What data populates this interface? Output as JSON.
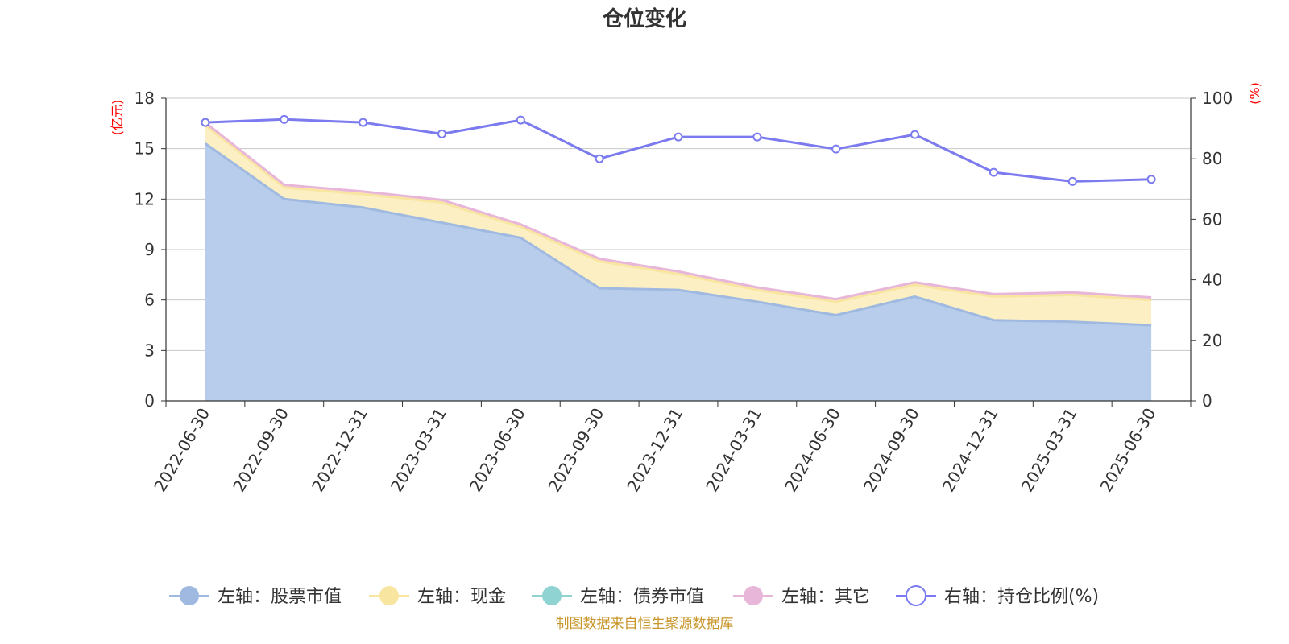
{
  "title": "仓位变化",
  "source": "制图数据来自恒生聚源数据库",
  "chart_data": {
    "type": "area",
    "title": "仓位变化",
    "x": [
      "2022-06-30",
      "2022-09-30",
      "2022-12-31",
      "2023-03-31",
      "2023-06-30",
      "2023-09-30",
      "2023-12-31",
      "2024-03-31",
      "2024-06-30",
      "2024-09-30",
      "2024-12-31",
      "2025-03-31",
      "2025-06-30"
    ],
    "left_axis": {
      "unit": "(亿元)",
      "ylim": [
        0,
        18
      ],
      "ticks": [
        "0",
        "3",
        "6",
        "9",
        "12",
        "15",
        "18"
      ]
    },
    "right_axis": {
      "unit": "(%)",
      "ylim": [
        0,
        100
      ],
      "ticks": [
        "0",
        "20",
        "40",
        "60",
        "80",
        "100"
      ]
    },
    "stacked": true,
    "grid": true,
    "legend_position": "bottom",
    "series": [
      {
        "name": "左轴：股票市值",
        "axis": "left",
        "color": "#9fb9e0",
        "fill": "#b8cdeb",
        "values": [
          15.3,
          12.0,
          11.5,
          10.6,
          9.7,
          6.7,
          6.6,
          5.9,
          5.1,
          6.2,
          4.8,
          4.7,
          4.5
        ]
      },
      {
        "name": "左轴：现金",
        "axis": "left",
        "color": "#f8e6a0",
        "fill": "#fbefc3",
        "values": [
          1.1,
          0.7,
          0.8,
          1.2,
          0.65,
          1.6,
          0.95,
          0.7,
          0.8,
          0.7,
          1.4,
          1.6,
          1.5
        ]
      },
      {
        "name": "左轴：债券市值",
        "axis": "left",
        "color": "#8fd3d3",
        "fill": "#8fd3d3",
        "values": [
          0,
          0,
          0,
          0,
          0,
          0,
          0,
          0,
          0,
          0,
          0,
          0,
          0
        ]
      },
      {
        "name": "左轴：其它",
        "axis": "left",
        "color": "#e8b6d8",
        "fill": "#f3d4e8",
        "values": [
          0.15,
          0.15,
          0.15,
          0.15,
          0.15,
          0.15,
          0.15,
          0.15,
          0.15,
          0.15,
          0.15,
          0.15,
          0.15
        ]
      },
      {
        "name": "右轴：持仓比例(%)",
        "axis": "right",
        "color": "#7b7bef",
        "type": "line",
        "values": [
          92.0,
          93.0,
          92.0,
          88.2,
          92.8,
          80.0,
          87.2,
          87.2,
          83.2,
          88.0,
          75.5,
          72.5,
          73.2
        ]
      }
    ]
  }
}
